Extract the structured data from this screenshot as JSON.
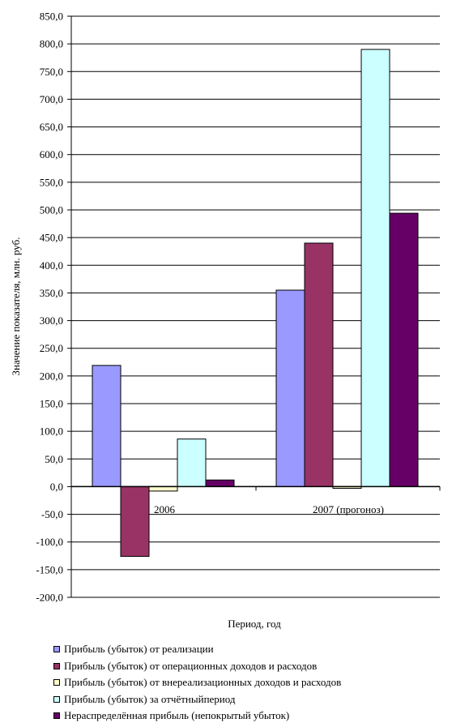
{
  "chart_data": {
    "type": "bar",
    "title": "",
    "xlabel": "Период, год",
    "ylabel": "Значение показателя, млн. руб.",
    "categories": [
      "2006",
      "2007 (прогоноз)"
    ],
    "ylim": [
      -200,
      850
    ],
    "ytick_step": 50,
    "y_tick_labels": [
      "850,0",
      "800,0",
      "750,0",
      "700,0",
      "650,0",
      "600,0",
      "550,0",
      "500,0",
      "450,0",
      "400,0",
      "350,0",
      "300,0",
      "250,0",
      "200,0",
      "150,0",
      "100,0",
      "50,0",
      "0,0",
      "-50,0",
      "-100,0",
      "-150,0",
      "-200,0"
    ],
    "grid": true,
    "legend_position": "bottom",
    "series": [
      {
        "name": "Прибыль (убыток) от реализации",
        "color": "#9999FF",
        "values": [
          219,
          355
        ]
      },
      {
        "name": "Прибыль (убыток) от операционных доходов и расходов",
        "color": "#993366",
        "values": [
          -126,
          440
        ]
      },
      {
        "name": "Прибыль (убыток) от внереализационных доходов и расходов",
        "color": "#FFFFCC",
        "values": [
          -8,
          -3
        ]
      },
      {
        "name": "Прибыль (убыток) за отчётныйпериод",
        "color": "#CCFFFF",
        "values": [
          86,
          790
        ]
      },
      {
        "name": "Нераспределённая прибыль (непокрытый убыток)",
        "color": "#660066",
        "values": [
          12,
          494
        ]
      }
    ]
  }
}
